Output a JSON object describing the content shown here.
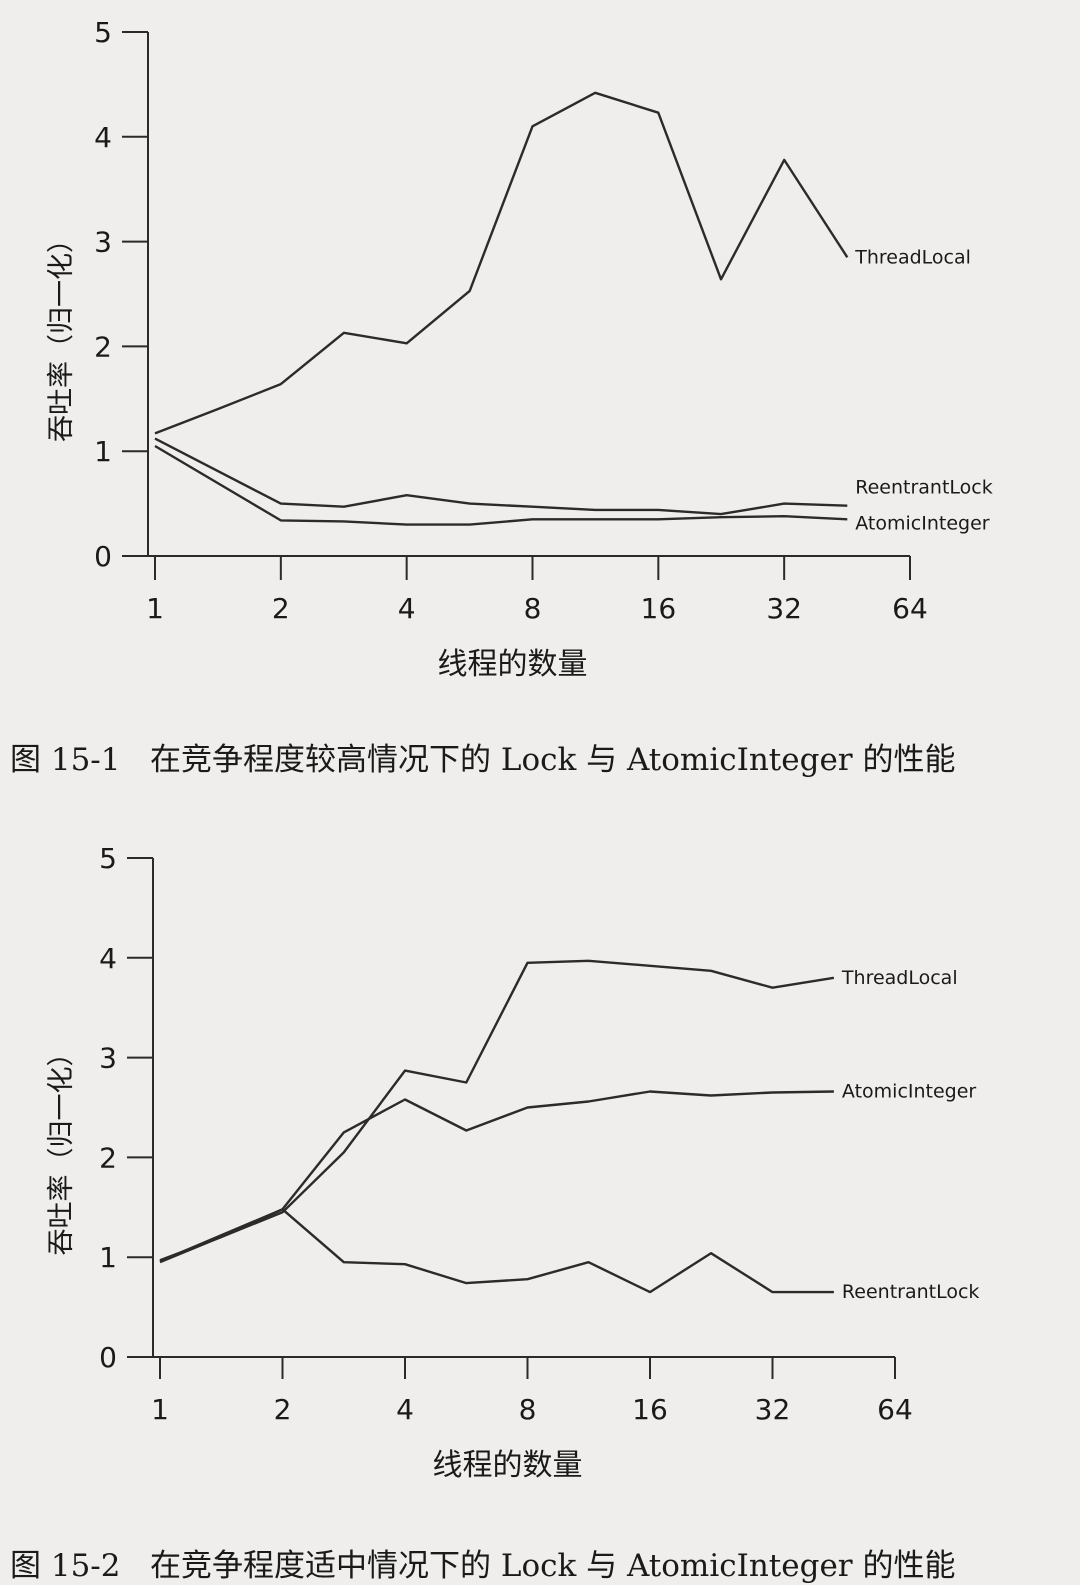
{
  "figures": [
    {
      "number": "图 15-1",
      "caption": "在竞争程度较高情况下的 Lock 与 AtomicInteger 的性能"
    },
    {
      "number": "图 15-2",
      "caption": "在竞争程度适中情况下的 Lock 与 AtomicInteger 的性能"
    }
  ],
  "chart_data": [
    {
      "type": "line",
      "title": "",
      "xlabel": "线程的数量",
      "ylabel": "吞吐率（归一化）",
      "x_scale": "log2",
      "x_ticks": [
        1,
        2,
        4,
        8,
        16,
        32,
        64
      ],
      "x_tick_labels": [
        "1",
        "2",
        "4",
        "8",
        "16",
        "32",
        "64"
      ],
      "y_ticks": [
        0,
        1,
        2,
        3,
        4,
        5
      ],
      "y_tick_labels": [
        "0",
        "1",
        "2",
        "3",
        "4",
        "5"
      ],
      "ylim": [
        0,
        5
      ],
      "xlim": [
        1,
        64
      ],
      "legend": "inline labels at right end of each line",
      "series": [
        {
          "name": "ThreadLocal",
          "x": [
            1,
            1.41,
            2,
            2.83,
            4,
            5.66,
            8,
            11.3,
            16,
            22.6,
            32,
            45.3
          ],
          "values": [
            1.17,
            1.4,
            1.64,
            2.13,
            2.03,
            2.53,
            4.1,
            4.42,
            4.23,
            2.64,
            3.78,
            2.85
          ]
        },
        {
          "name": "ReentrantLock",
          "x": [
            1,
            2,
            2.83,
            4,
            5.66,
            8,
            11.3,
            16,
            22.6,
            32,
            45.3
          ],
          "values": [
            1.12,
            0.5,
            0.47,
            0.58,
            0.5,
            0.47,
            0.44,
            0.44,
            0.4,
            0.5,
            0.48
          ]
        },
        {
          "name": "AtomicInteger",
          "x": [
            1,
            2,
            2.83,
            4,
            5.66,
            8,
            11.3,
            16,
            22.6,
            32,
            45.3
          ],
          "values": [
            1.05,
            0.34,
            0.33,
            0.3,
            0.3,
            0.35,
            0.35,
            0.35,
            0.37,
            0.38,
            0.35
          ]
        }
      ]
    },
    {
      "type": "line",
      "title": "",
      "xlabel": "线程的数量",
      "ylabel": "吞吐率（归一化）",
      "x_scale": "log2",
      "x_ticks": [
        1,
        2,
        4,
        8,
        16,
        32,
        64
      ],
      "x_tick_labels": [
        "1",
        "2",
        "4",
        "8",
        "16",
        "32",
        "64"
      ],
      "y_ticks": [
        0,
        1,
        2,
        3,
        4,
        5
      ],
      "y_tick_labels": [
        "0",
        "1",
        "2",
        "3",
        "4",
        "5"
      ],
      "ylim": [
        0,
        5
      ],
      "xlim": [
        1,
        64
      ],
      "legend": "inline labels at right end of each line",
      "series": [
        {
          "name": "ThreadLocal",
          "x": [
            1,
            1.41,
            2,
            2.83,
            4,
            5.66,
            8,
            11.3,
            16,
            22.6,
            32,
            45.3
          ],
          "values": [
            0.97,
            1.2,
            1.45,
            2.05,
            2.87,
            2.75,
            3.95,
            3.97,
            3.92,
            3.87,
            3.7,
            3.8
          ]
        },
        {
          "name": "AtomicInteger",
          "x": [
            1,
            1.41,
            2,
            2.83,
            4,
            5.66,
            8,
            11.3,
            16,
            22.6,
            32,
            45.3
          ],
          "values": [
            0.95,
            1.2,
            1.48,
            2.25,
            2.58,
            2.27,
            2.5,
            2.56,
            2.66,
            2.62,
            2.65,
            2.66
          ]
        },
        {
          "name": "ReentrantLock",
          "x": [
            1,
            2,
            2.83,
            4,
            5.66,
            8,
            11.3,
            16,
            22.6,
            32,
            45.3
          ],
          "values": [
            0.96,
            1.48,
            0.95,
            0.93,
            0.74,
            0.78,
            0.95,
            0.65,
            1.04,
            0.65,
            0.65
          ]
        }
      ]
    }
  ]
}
